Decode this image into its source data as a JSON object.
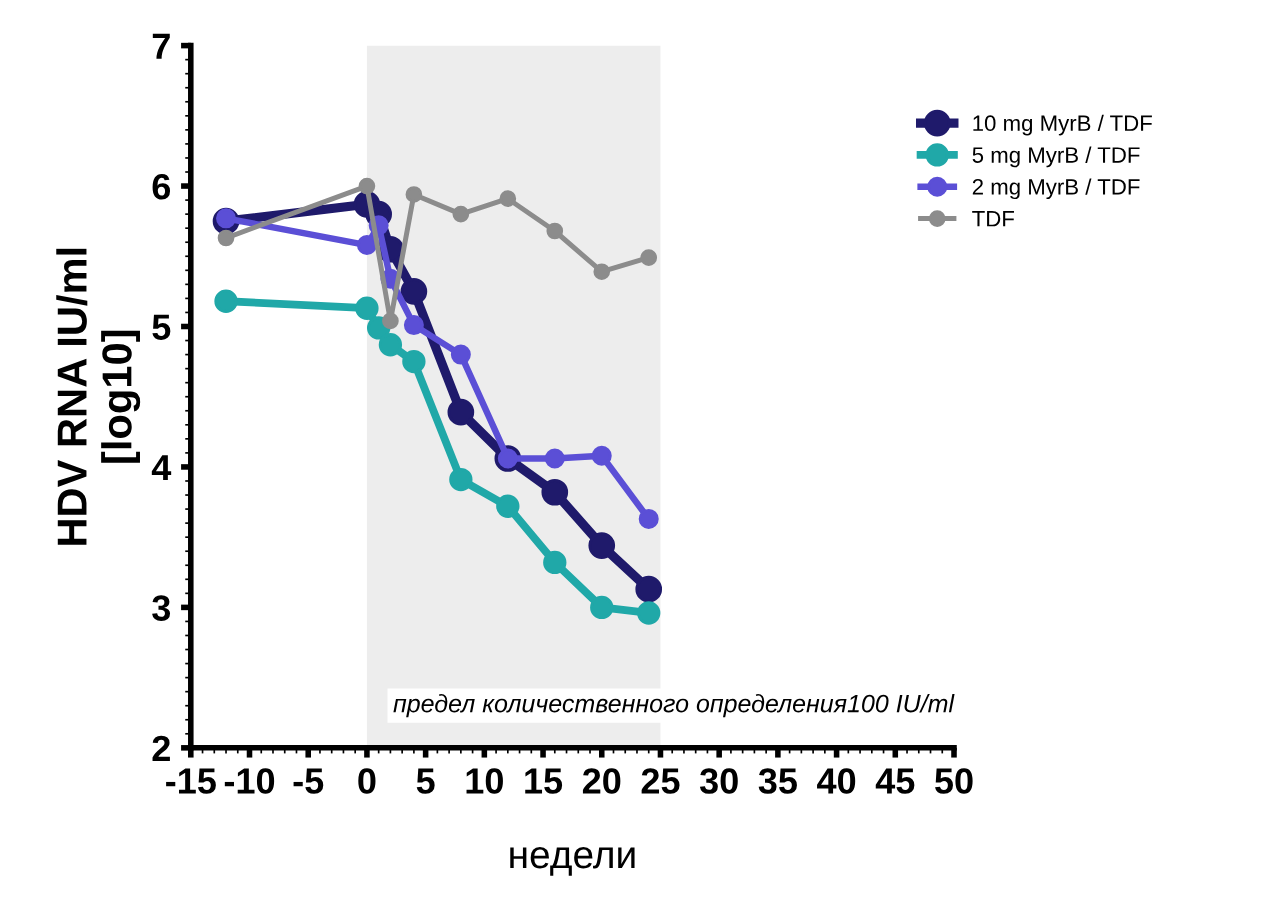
{
  "chart_data": {
    "type": "line",
    "xlabel": "недели",
    "ylabel": "HDV RNA IU/ml\n[log10]",
    "x": [
      -12,
      0,
      1,
      2,
      4,
      8,
      12,
      16,
      20,
      24
    ],
    "series": [
      {
        "name": "10 mg MyrB / TDF",
        "color": "#1f1a6b",
        "values": [
          5.75,
          5.87,
          5.8,
          5.55,
          5.25,
          4.39,
          4.06,
          3.82,
          3.44,
          3.13
        ]
      },
      {
        "name": "5 mg MyrB / TDF",
        "color": "#20a8a8",
        "values": [
          5.18,
          5.13,
          4.99,
          4.87,
          4.75,
          3.91,
          3.72,
          3.32,
          3.0,
          2.96
        ]
      },
      {
        "name": "2 mg MyrB / TDF",
        "color": "#5b4fd6",
        "values": [
          5.77,
          5.58,
          5.72,
          5.34,
          5.01,
          4.8,
          4.06,
          4.06,
          4.08,
          3.63
        ]
      },
      {
        "name": "TDF",
        "color": "#8c8c8c",
        "values": [
          5.63,
          6.0,
          null,
          5.04,
          5.94,
          5.8,
          5.91,
          5.68,
          5.39,
          5.49
        ]
      }
    ],
    "xlim": [
      -15,
      50
    ],
    "ylim": [
      2,
      7
    ],
    "xticks": [
      -15,
      -10,
      -5,
      0,
      5,
      10,
      15,
      20,
      25,
      30,
      35,
      40,
      45,
      50
    ],
    "yticks": [
      2,
      3,
      4,
      5,
      6,
      7
    ],
    "bands": [
      {
        "axis": "x",
        "from": 0,
        "to": 25,
        "color": "#ededed"
      }
    ],
    "annotations": [
      "предел количественного определения100 IU/ml"
    ],
    "marker": "circle",
    "line_style": "solid",
    "legend": "top right",
    "grid": false
  }
}
